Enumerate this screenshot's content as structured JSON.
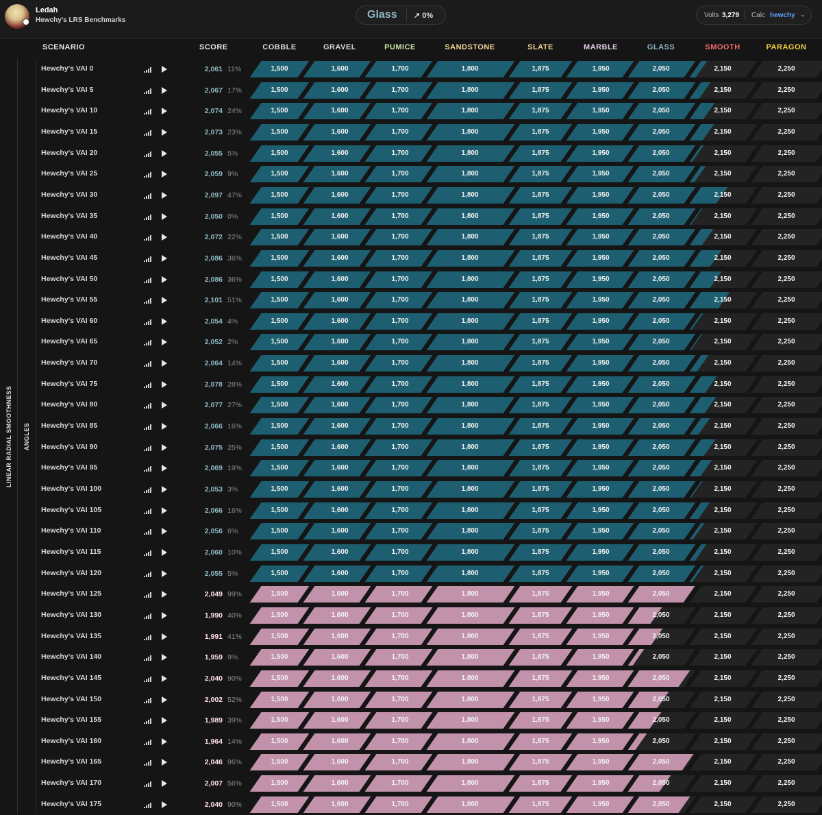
{
  "user": {
    "name": "Ledah",
    "subtitle": "Hewchy's LRS Benchmarks"
  },
  "rank": {
    "name": "Glass",
    "trend": "0%",
    "color": "#8fb8c4"
  },
  "volts": {
    "label": "Volts",
    "value": "3,279"
  },
  "calc": {
    "label": "Calc",
    "value": "hewchy"
  },
  "category": "LINEAR RADIAL SMOOTHNESS",
  "subcategory": "ANGLES",
  "columns": {
    "scenario": "SCENARIO",
    "score": "SCORE",
    "ranks": [
      {
        "name": "COBBLE",
        "color": "#d9d9d9"
      },
      {
        "name": "GRAVEL",
        "color": "#d9d9d9"
      },
      {
        "name": "PUMICE",
        "color": "#cfe6a8"
      },
      {
        "name": "SANDSTONE",
        "color": "#f1d597"
      },
      {
        "name": "SLATE",
        "color": "#f1d597"
      },
      {
        "name": "MARBLE",
        "color": "#e3c9e6"
      },
      {
        "name": "GLASS",
        "color": "#8fb8c4"
      },
      {
        "name": "SMOOTH",
        "color": "#f26e6e"
      },
      {
        "name": "PARAGON",
        "color": "#f5d247"
      }
    ]
  },
  "thresholds": [
    "1,500",
    "1,600",
    "1,700",
    "1,800",
    "1,875",
    "1,950",
    "2,050",
    "2,150",
    "2,250"
  ],
  "colors": {
    "glass": "#1d5f70",
    "marble": "#c292ab",
    "score_glass": "#8fb8c4",
    "score_marble": "#ffdde9"
  },
  "rows": [
    {
      "name": "Hewchy's VAI 0",
      "score": "2,061",
      "pct": "11%",
      "level": 7,
      "progress": 0.11
    },
    {
      "name": "Hewchy's VAI 5",
      "score": "2,067",
      "pct": "17%",
      "level": 7,
      "progress": 0.17
    },
    {
      "name": "Hewchy's VAI 10",
      "score": "2,074",
      "pct": "24%",
      "level": 7,
      "progress": 0.24
    },
    {
      "name": "Hewchy's VAI 15",
      "score": "2,073",
      "pct": "23%",
      "level": 7,
      "progress": 0.23
    },
    {
      "name": "Hewchy's VAI 20",
      "score": "2,055",
      "pct": "5%",
      "level": 7,
      "progress": 0.05
    },
    {
      "name": "Hewchy's VAI 25",
      "score": "2,059",
      "pct": "9%",
      "level": 7,
      "progress": 0.09
    },
    {
      "name": "Hewchy's VAI 30",
      "score": "2,097",
      "pct": "47%",
      "level": 7,
      "progress": 0.47
    },
    {
      "name": "Hewchy's VAI 35",
      "score": "2,050",
      "pct": "0%",
      "level": 7,
      "progress": 0.0
    },
    {
      "name": "Hewchy's VAI 40",
      "score": "2,072",
      "pct": "22%",
      "level": 7,
      "progress": 0.22
    },
    {
      "name": "Hewchy's VAI 45",
      "score": "2,086",
      "pct": "36%",
      "level": 7,
      "progress": 0.36
    },
    {
      "name": "Hewchy's VAI 50",
      "score": "2,086",
      "pct": "36%",
      "level": 7,
      "progress": 0.36
    },
    {
      "name": "Hewchy's VAI 55",
      "score": "2,101",
      "pct": "51%",
      "level": 7,
      "progress": 0.51
    },
    {
      "name": "Hewchy's VAI 60",
      "score": "2,054",
      "pct": "4%",
      "level": 7,
      "progress": 0.04
    },
    {
      "name": "Hewchy's VAI 65",
      "score": "2,052",
      "pct": "2%",
      "level": 7,
      "progress": 0.02
    },
    {
      "name": "Hewchy's VAI 70",
      "score": "2,064",
      "pct": "14%",
      "level": 7,
      "progress": 0.14
    },
    {
      "name": "Hewchy's VAI 75",
      "score": "2,078",
      "pct": "28%",
      "level": 7,
      "progress": 0.28
    },
    {
      "name": "Hewchy's VAI 80",
      "score": "2,077",
      "pct": "27%",
      "level": 7,
      "progress": 0.27
    },
    {
      "name": "Hewchy's VAI 85",
      "score": "2,066",
      "pct": "16%",
      "level": 7,
      "progress": 0.16
    },
    {
      "name": "Hewchy's VAI 90",
      "score": "2,075",
      "pct": "25%",
      "level": 7,
      "progress": 0.25
    },
    {
      "name": "Hewchy's VAI 95",
      "score": "2,069",
      "pct": "19%",
      "level": 7,
      "progress": 0.19
    },
    {
      "name": "Hewchy's VAI 100",
      "score": "2,053",
      "pct": "3%",
      "level": 7,
      "progress": 0.03
    },
    {
      "name": "Hewchy's VAI 105",
      "score": "2,066",
      "pct": "16%",
      "level": 7,
      "progress": 0.16
    },
    {
      "name": "Hewchy's VAI 110",
      "score": "2,056",
      "pct": "6%",
      "level": 7,
      "progress": 0.06
    },
    {
      "name": "Hewchy's VAI 115",
      "score": "2,060",
      "pct": "10%",
      "level": 7,
      "progress": 0.1
    },
    {
      "name": "Hewchy's VAI 120",
      "score": "2,055",
      "pct": "5%",
      "level": 7,
      "progress": 0.05
    },
    {
      "name": "Hewchy's VAI 125",
      "score": "2,049",
      "pct": "99%",
      "level": 6,
      "progress": 0.99
    },
    {
      "name": "Hewchy's VAI 130",
      "score": "1,990",
      "pct": "40%",
      "level": 6,
      "progress": 0.4
    },
    {
      "name": "Hewchy's VAI 135",
      "score": "1,991",
      "pct": "41%",
      "level": 6,
      "progress": 0.41
    },
    {
      "name": "Hewchy's VAI 140",
      "score": "1,959",
      "pct": "9%",
      "level": 6,
      "progress": 0.09
    },
    {
      "name": "Hewchy's VAI 145",
      "score": "2,040",
      "pct": "90%",
      "level": 6,
      "progress": 0.9
    },
    {
      "name": "Hewchy's VAI 150",
      "score": "2,002",
      "pct": "52%",
      "level": 6,
      "progress": 0.52
    },
    {
      "name": "Hewchy's VAI 155",
      "score": "1,989",
      "pct": "39%",
      "level": 6,
      "progress": 0.39
    },
    {
      "name": "Hewchy's VAI 160",
      "score": "1,964",
      "pct": "14%",
      "level": 6,
      "progress": 0.14
    },
    {
      "name": "Hewchy's VAI 165",
      "score": "2,046",
      "pct": "96%",
      "level": 6,
      "progress": 0.96
    },
    {
      "name": "Hewchy's VAI 170",
      "score": "2,007",
      "pct": "56%",
      "level": 6,
      "progress": 0.56
    },
    {
      "name": "Hewchy's VAI 175",
      "score": "2,040",
      "pct": "90%",
      "level": 6,
      "progress": 0.9
    }
  ]
}
